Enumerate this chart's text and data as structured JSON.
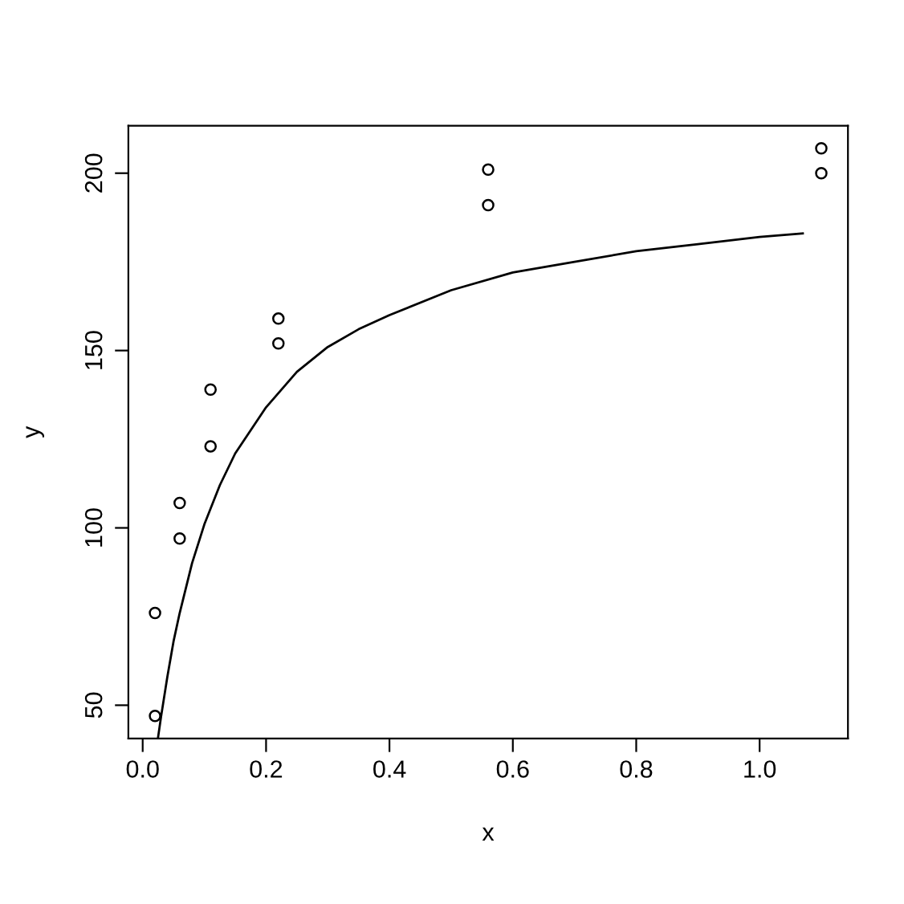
{
  "chart_data": {
    "type": "scatter",
    "xlabel": "x",
    "ylabel": "y",
    "xlim": [
      -0.0232,
      1.1432
    ],
    "ylim": [
      40.6,
      213.4
    ],
    "xticks": [
      {
        "value": 0,
        "label": "0.0"
      },
      {
        "value": 0.2,
        "label": "0.2"
      },
      {
        "value": 0.4,
        "label": "0.4"
      },
      {
        "value": 0.6,
        "label": "0.6"
      },
      {
        "value": 0.8,
        "label": "0.8"
      },
      {
        "value": 1.0,
        "label": "1.0"
      }
    ],
    "yticks": [
      50,
      100,
      150,
      200
    ],
    "grid": false,
    "legend": false,
    "series": [
      {
        "marker": "circle",
        "color": "#000000",
        "x": [
          0.02,
          0.02,
          0.06,
          0.06,
          0.11,
          0.11,
          0.22,
          0.22,
          0.56,
          0.56,
          1.1,
          1.1
        ],
        "values": [
          76,
          47,
          97,
          107,
          123,
          139,
          159,
          152,
          191,
          201,
          207,
          200
        ]
      },
      {
        "type": "line",
        "marker": "none",
        "line_style": "solid",
        "color": "#000000",
        "x": [
          0.025,
          0.03,
          0.04,
          0.05,
          0.06,
          0.08,
          0.1,
          0.125,
          0.15,
          0.2,
          0.25,
          0.3,
          0.35,
          0.4,
          0.5,
          0.6,
          0.7,
          0.8,
          0.9,
          1.0,
          1.07
        ],
        "values": [
          41,
          47,
          58,
          68,
          76,
          90,
          101,
          112,
          121,
          134,
          144,
          151,
          156,
          160,
          167,
          172,
          175,
          178,
          180,
          182,
          183
        ]
      }
    ]
  }
}
